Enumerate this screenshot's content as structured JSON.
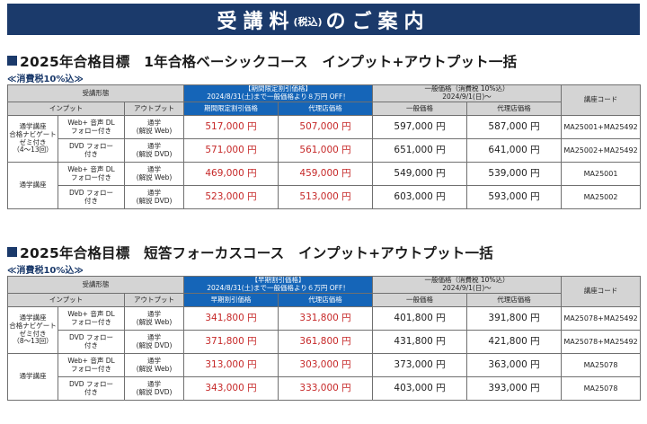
{
  "banner": {
    "main_left": "受講料",
    "tax_small": "(税込)",
    "main_right": "のご案内"
  },
  "sections": [
    {
      "title": "2025年合格目標　1年合格ベーシックコース　インプット+アウトプット一括",
      "tax_note": "≪消費税10%込≫",
      "headers": {
        "form": "受講形態",
        "input": "インプット",
        "output": "アウトプット",
        "promo_period": "【期間限定割引価格】",
        "promo_desc": "2024/8/31(土)まで一般価格より８万円 OFF！",
        "promo_price": "期間限定割引価格",
        "promo_agency": "代理店価格",
        "general": "一般価格（消費税 10%込）",
        "general_date": "2024/9/1(日)～",
        "general_price": "一般価格",
        "general_agency": "代理店価格",
        "course_code": "講座コード"
      },
      "groups": [
        {
          "label": "通学講座\n合格ナビゲート\nゼミ付き\n（4～13回）"
        },
        {
          "label": "通学講座"
        }
      ],
      "rows": [
        {
          "input": "Web+ 音声 DL\nフォロー付き",
          "output": "通学\n(解説 Web)",
          "promo": "517,000 円",
          "promo_agency": "507,000 円",
          "general": "597,000 円",
          "general_agency": "587,000 円",
          "code": "MA25001+MA25492"
        },
        {
          "input": "DVD フォロー\n付き",
          "output": "通学\n(解説 DVD)",
          "promo": "571,000 円",
          "promo_agency": "561,000 円",
          "general": "651,000 円",
          "general_agency": "641,000 円",
          "code": "MA25002+MA25492"
        },
        {
          "input": "Web+ 音声 DL\nフォロー付き",
          "output": "通学\n(解説 Web)",
          "promo": "469,000 円",
          "promo_agency": "459,000 円",
          "general": "549,000 円",
          "general_agency": "539,000 円",
          "code": "MA25001"
        },
        {
          "input": "DVD フォロー\n付き",
          "output": "通学\n(解説 DVD)",
          "promo": "523,000 円",
          "promo_agency": "513,000 円",
          "general": "603,000 円",
          "general_agency": "593,000 円",
          "code": "MA25002"
        }
      ]
    },
    {
      "title": "2025年合格目標　短答フォーカスコース　インプット+アウトプット一括",
      "tax_note": "≪消費税10%込≫",
      "headers": {
        "form": "受講形態",
        "input": "インプット",
        "output": "アウトプット",
        "promo_period": "【早期割引価格】",
        "promo_desc": "2024/8/31(土)まで一般価格より６万円 OFF！",
        "promo_price": "早期割引価格",
        "promo_agency": "代理店価格",
        "general": "一般価格（消費税 10%込）",
        "general_date": "2024/9/1(日)～",
        "general_price": "一般価格",
        "general_agency": "代理店価格",
        "course_code": "講座コード"
      },
      "groups": [
        {
          "label": "通学講座\n合格ナビゲート\nゼミ付き\n（8～13回）"
        },
        {
          "label": "通学講座"
        }
      ],
      "rows": [
        {
          "input": "Web+ 音声 DL\nフォロー付き",
          "output": "通学\n(解説 Web)",
          "promo": "341,800 円",
          "promo_agency": "331,800 円",
          "general": "401,800 円",
          "general_agency": "391,800 円",
          "code": "MA25078+MA25492"
        },
        {
          "input": "DVD フォロー\n付き",
          "output": "通学\n(解説 DVD)",
          "promo": "371,800 円",
          "promo_agency": "361,800 円",
          "general": "431,800 円",
          "general_agency": "421,800 円",
          "code": "MA25078+MA25492"
        },
        {
          "input": "Web+ 音声 DL\nフォロー付き",
          "output": "通学\n(解説 Web)",
          "promo": "313,000 円",
          "promo_agency": "303,000 円",
          "general": "373,000 円",
          "general_agency": "363,000 円",
          "code": "MA25078"
        },
        {
          "input": "DVD フォロー\n付き",
          "output": "通学\n(解説 DVD)",
          "promo": "343,000 円",
          "promo_agency": "333,000 円",
          "general": "403,000 円",
          "general_agency": "393,000 円",
          "code": "MA25078"
        }
      ]
    }
  ]
}
